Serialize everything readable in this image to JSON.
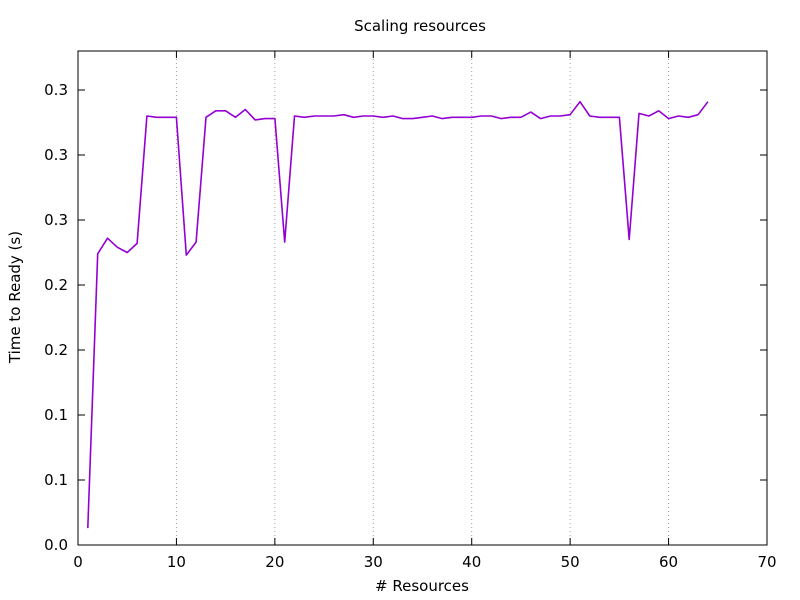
{
  "chart_data": {
    "type": "line",
    "title": "Scaling resources",
    "xlabel": "# Resources",
    "ylabel": "Time to Ready (s)",
    "xlim": [
      0,
      70
    ],
    "ylim": [
      0,
      0.38
    ],
    "x_ticks": [
      {
        "value": 0,
        "label": "0"
      },
      {
        "value": 10,
        "label": "10"
      },
      {
        "value": 20,
        "label": "20"
      },
      {
        "value": 30,
        "label": "30"
      },
      {
        "value": 40,
        "label": "40"
      },
      {
        "value": 50,
        "label": "50"
      },
      {
        "value": 60,
        "label": "60"
      },
      {
        "value": 70,
        "label": "70"
      }
    ],
    "y_ticks": [
      {
        "value": 0.0,
        "label": "0.0"
      },
      {
        "value": 0.05,
        "label": "0.1"
      },
      {
        "value": 0.1,
        "label": "0.1"
      },
      {
        "value": 0.15,
        "label": "0.2"
      },
      {
        "value": 0.2,
        "label": "0.2"
      },
      {
        "value": 0.25,
        "label": "0.3"
      },
      {
        "value": 0.3,
        "label": "0.3"
      },
      {
        "value": 0.35,
        "label": "0.3"
      }
    ],
    "grid": {
      "x": true,
      "y": false,
      "style": "dotted"
    },
    "series": [
      {
        "color": "#9400d3",
        "x": [
          1,
          2,
          3,
          4,
          5,
          6,
          7,
          8,
          9,
          10,
          11,
          12,
          13,
          14,
          15,
          16,
          17,
          18,
          19,
          20,
          21,
          22,
          23,
          24,
          25,
          26,
          27,
          28,
          29,
          30,
          31,
          32,
          33,
          34,
          35,
          36,
          37,
          38,
          39,
          40,
          41,
          42,
          43,
          44,
          45,
          46,
          47,
          48,
          49,
          50,
          51,
          52,
          53,
          54,
          55,
          56,
          57,
          58,
          59,
          60,
          61,
          62,
          63,
          64
        ],
        "y": [
          0.013,
          0.224,
          0.236,
          0.229,
          0.225,
          0.232,
          0.33,
          0.329,
          0.329,
          0.329,
          0.223,
          0.233,
          0.329,
          0.334,
          0.334,
          0.329,
          0.335,
          0.327,
          0.328,
          0.328,
          0.233,
          0.33,
          0.329,
          0.33,
          0.33,
          0.33,
          0.331,
          0.329,
          0.33,
          0.33,
          0.329,
          0.33,
          0.328,
          0.328,
          0.329,
          0.33,
          0.328,
          0.329,
          0.329,
          0.329,
          0.33,
          0.33,
          0.328,
          0.329,
          0.329,
          0.333,
          0.328,
          0.33,
          0.33,
          0.331,
          0.341,
          0.33,
          0.329,
          0.329,
          0.329,
          0.235,
          0.332,
          0.33,
          0.334,
          0.328,
          0.33,
          0.329,
          0.331,
          0.341
        ]
      }
    ]
  }
}
